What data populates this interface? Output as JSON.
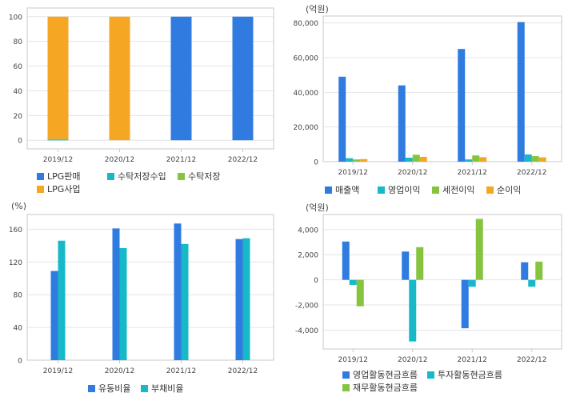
{
  "colors": {
    "blue": "#2f7be0",
    "teal": "#17b9c9",
    "green": "#86c440",
    "orange": "#f5a623",
    "grid": "#e4e4e4",
    "frame": "#c8c8c8"
  },
  "chart_data": [
    {
      "id": "business-mix",
      "type": "bar",
      "stacked": true,
      "unit": "",
      "categories": [
        "2019/12",
        "2020/12",
        "2021/12",
        "2022/12"
      ],
      "yticks": [
        0,
        20,
        40,
        60,
        80,
        100
      ],
      "ylim": [
        -7,
        107
      ],
      "series": [
        {
          "name": "LPG판매",
          "color": "blue",
          "values": [
            0,
            0,
            100,
            100
          ]
        },
        {
          "name": "수탁저장수입",
          "color": "teal",
          "values": [
            0.4,
            0,
            0,
            0
          ]
        },
        {
          "name": "수탁저장",
          "color": "green",
          "values": [
            0.6,
            0,
            0,
            0
          ]
        },
        {
          "name": "LPG사업",
          "color": "orange",
          "values": [
            99,
            100,
            0,
            0
          ]
        }
      ],
      "legend": [
        {
          "name": "LPG판매",
          "color": "blue"
        },
        {
          "name": "수탁저장수입",
          "color": "teal"
        },
        {
          "name": "수탁저장",
          "color": "green"
        },
        {
          "name": "LPG사업",
          "color": "orange"
        }
      ]
    },
    {
      "id": "income",
      "type": "bar",
      "stacked": false,
      "unit": "(억원)",
      "categories": [
        "2019/12",
        "2020/12",
        "2021/12",
        "2022/12"
      ],
      "yticks": [
        0,
        20000,
        40000,
        60000,
        80000
      ],
      "ytick_labels": [
        "0",
        "20,000",
        "40,000",
        "60,000",
        "80,000"
      ],
      "ylim": [
        0,
        84000
      ],
      "series": [
        {
          "name": "매출액",
          "color": "blue",
          "values": [
            49000,
            44000,
            65000,
            80500
          ]
        },
        {
          "name": "영업이익",
          "color": "teal",
          "values": [
            2000,
            2300,
            1300,
            4200
          ]
        },
        {
          "name": "세전이익",
          "color": "green",
          "values": [
            1300,
            4000,
            3600,
            3200
          ]
        },
        {
          "name": "순이익",
          "color": "orange",
          "values": [
            1500,
            2800,
            2600,
            2500
          ]
        }
      ]
    },
    {
      "id": "ratios",
      "type": "bar",
      "stacked": false,
      "unit": "(%)",
      "categories": [
        "2019/12",
        "2020/12",
        "2021/12",
        "2022/12"
      ],
      "yticks": [
        0,
        40,
        80,
        120,
        160
      ],
      "ylim": [
        0,
        178
      ],
      "series": [
        {
          "name": "유동비율",
          "color": "blue",
          "values": [
            109,
            161,
            167,
            148
          ]
        },
        {
          "name": "부채비율",
          "color": "teal",
          "values": [
            146,
            137,
            142,
            149
          ]
        }
      ]
    },
    {
      "id": "cashflow",
      "type": "bar",
      "stacked": false,
      "unit": "(억원)",
      "categories": [
        "2019/12",
        "2020/12",
        "2021/12",
        "2022/12"
      ],
      "yticks": [
        -4000,
        -2000,
        0,
        2000,
        4000
      ],
      "ytick_labels": [
        "-4,000",
        "-2,000",
        "0",
        "2,000",
        "4,000"
      ],
      "ylim": [
        -5500,
        5200
      ],
      "series": [
        {
          "name": "영업활동현금흐름",
          "color": "blue",
          "values": [
            3050,
            2250,
            -3850,
            1400
          ]
        },
        {
          "name": "투자활동현금흐름",
          "color": "teal",
          "values": [
            -400,
            -4900,
            -550,
            -550
          ]
        },
        {
          "name": "재무활동현금흐름",
          "color": "green",
          "values": [
            -2100,
            2600,
            4850,
            1450
          ]
        }
      ]
    }
  ]
}
